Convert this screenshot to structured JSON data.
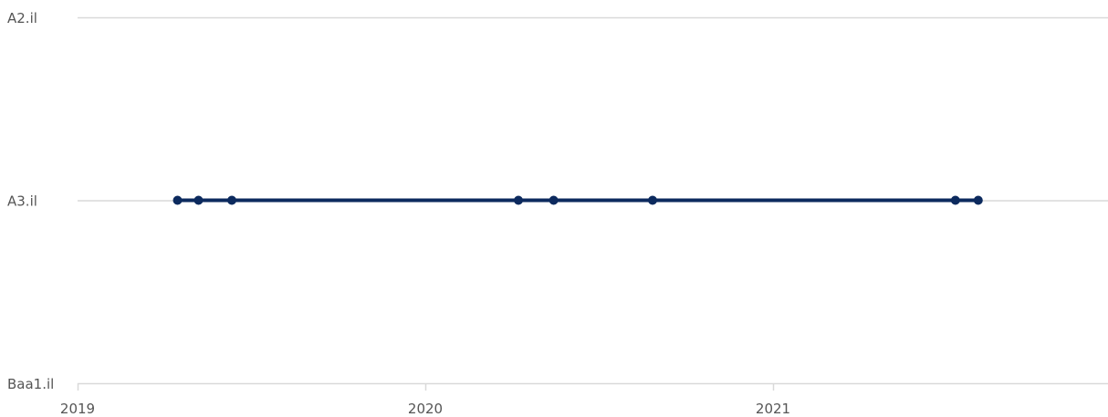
{
  "chart_data": {
    "type": "line",
    "title": "",
    "xlabel": "",
    "ylabel": "",
    "y_categories": [
      "Baa1.il",
      "A3.il",
      "A2.il"
    ],
    "x_ticks": [
      "2019",
      "2020",
      "2021"
    ],
    "xlim": [
      "2019-01-01",
      "2021-12-31"
    ],
    "grid": "horizontal",
    "series": [
      {
        "color": "#0c2a5e",
        "points": [
          {
            "x": "2019-04-16",
            "y": "A3.il"
          },
          {
            "x": "2019-05-08",
            "y": "A3.il"
          },
          {
            "x": "2019-06-12",
            "y": "A3.il"
          },
          {
            "x": "2020-04-08",
            "y": "A3.il"
          },
          {
            "x": "2020-05-15",
            "y": "A3.il"
          },
          {
            "x": "2020-08-27",
            "y": "A3.il"
          },
          {
            "x": "2021-07-11",
            "y": "A3.il"
          },
          {
            "x": "2021-08-04",
            "y": "A3.il"
          }
        ]
      }
    ]
  }
}
